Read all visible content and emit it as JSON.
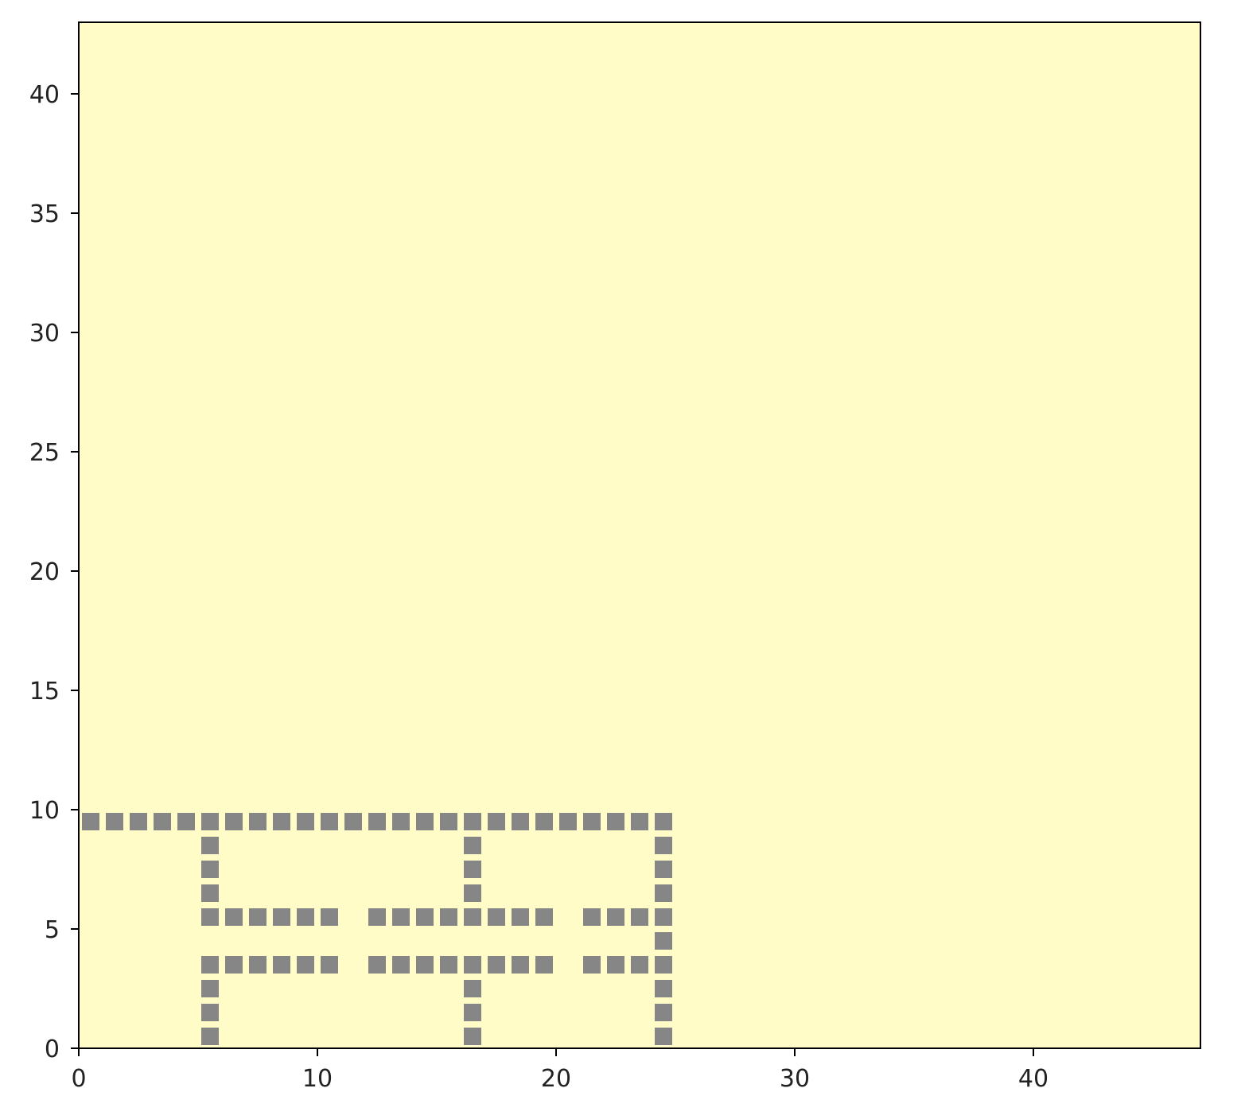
{
  "chart_data": {
    "type": "heatmap",
    "title": "",
    "xlabel": "",
    "ylabel": "",
    "xlim": [
      0,
      47
    ],
    "ylim": [
      0,
      43
    ],
    "x_ticks": [
      0,
      10,
      20,
      30,
      40
    ],
    "x_tick_labels": [
      "0",
      "10",
      "20",
      "30",
      "40"
    ],
    "y_ticks": [
      0,
      5,
      10,
      15,
      20,
      25,
      30,
      35,
      40
    ],
    "y_tick_labels": [
      "0",
      "5",
      "10",
      "15",
      "20",
      "25",
      "30",
      "35",
      "40"
    ],
    "grid": false,
    "legend": "none",
    "cell_size": 1,
    "colors": {
      "background": "#fffcc8",
      "occupied": "#868686",
      "axes": "#000000"
    },
    "occupied_cells": [
      [
        0,
        9
      ],
      [
        1,
        9
      ],
      [
        2,
        9
      ],
      [
        3,
        9
      ],
      [
        4,
        9
      ],
      [
        5,
        9
      ],
      [
        6,
        9
      ],
      [
        7,
        9
      ],
      [
        8,
        9
      ],
      [
        9,
        9
      ],
      [
        10,
        9
      ],
      [
        11,
        9
      ],
      [
        12,
        9
      ],
      [
        13,
        9
      ],
      [
        14,
        9
      ],
      [
        15,
        9
      ],
      [
        16,
        9
      ],
      [
        17,
        9
      ],
      [
        18,
        9
      ],
      [
        19,
        9
      ],
      [
        20,
        9
      ],
      [
        21,
        9
      ],
      [
        22,
        9
      ],
      [
        23,
        9
      ],
      [
        24,
        9
      ],
      [
        5,
        8
      ],
      [
        5,
        7
      ],
      [
        5,
        6
      ],
      [
        5,
        5
      ],
      [
        5,
        3
      ],
      [
        5,
        2
      ],
      [
        5,
        1
      ],
      [
        5,
        0
      ],
      [
        16,
        8
      ],
      [
        16,
        7
      ],
      [
        16,
        6
      ],
      [
        16,
        5
      ],
      [
        16,
        3
      ],
      [
        16,
        2
      ],
      [
        16,
        1
      ],
      [
        16,
        0
      ],
      [
        24,
        8
      ],
      [
        24,
        7
      ],
      [
        24,
        6
      ],
      [
        24,
        5
      ],
      [
        24,
        4
      ],
      [
        24,
        3
      ],
      [
        24,
        2
      ],
      [
        24,
        1
      ],
      [
        24,
        0
      ],
      [
        6,
        5
      ],
      [
        7,
        5
      ],
      [
        8,
        5
      ],
      [
        9,
        5
      ],
      [
        10,
        5
      ],
      [
        12,
        5
      ],
      [
        13,
        5
      ],
      [
        14,
        5
      ],
      [
        15,
        5
      ],
      [
        17,
        5
      ],
      [
        18,
        5
      ],
      [
        19,
        5
      ],
      [
        21,
        5
      ],
      [
        22,
        5
      ],
      [
        23,
        5
      ],
      [
        6,
        3
      ],
      [
        7,
        3
      ],
      [
        8,
        3
      ],
      [
        9,
        3
      ],
      [
        10,
        3
      ],
      [
        12,
        3
      ],
      [
        13,
        3
      ],
      [
        14,
        3
      ],
      [
        15,
        3
      ],
      [
        17,
        3
      ],
      [
        18,
        3
      ],
      [
        19,
        3
      ],
      [
        21,
        3
      ],
      [
        22,
        3
      ],
      [
        23,
        3
      ]
    ]
  }
}
